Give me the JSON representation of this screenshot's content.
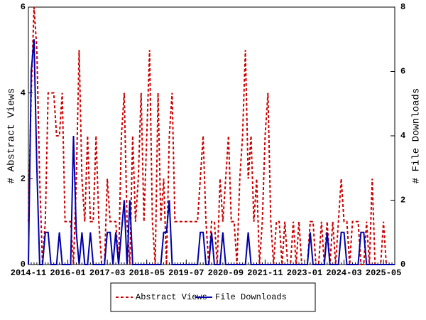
{
  "chart_data": {
    "type": "line",
    "ylabel": "# Abstract Views",
    "y2label": "# File Downloads",
    "x": [
      "2014-11",
      "2014-12",
      "2015-01",
      "2015-02",
      "2015-03",
      "2015-04",
      "2015-05",
      "2015-06",
      "2015-07",
      "2015-08",
      "2015-09",
      "2015-10",
      "2015-11",
      "2015-12",
      "2016-01",
      "2016-02",
      "2016-03",
      "2016-04",
      "2016-05",
      "2016-06",
      "2016-07",
      "2016-08",
      "2016-09",
      "2016-10",
      "2016-11",
      "2016-12",
      "2017-01",
      "2017-02",
      "2017-03",
      "2017-04",
      "2017-05",
      "2017-06",
      "2017-07",
      "2017-08",
      "2017-09",
      "2017-10",
      "2017-11",
      "2017-12",
      "2018-01",
      "2018-02",
      "2018-03",
      "2018-04",
      "2018-05",
      "2018-06",
      "2018-07",
      "2018-08",
      "2018-09",
      "2018-10",
      "2018-11",
      "2018-12",
      "2019-01",
      "2019-02",
      "2019-03",
      "2019-04",
      "2019-05",
      "2019-06",
      "2019-07",
      "2019-08",
      "2019-09",
      "2019-10",
      "2019-11",
      "2019-12",
      "2020-01",
      "2020-02",
      "2020-03",
      "2020-04",
      "2020-05",
      "2020-06",
      "2020-07",
      "2020-08",
      "2020-09",
      "2020-10",
      "2020-11",
      "2020-12",
      "2021-01",
      "2021-02",
      "2021-03",
      "2021-04",
      "2021-05",
      "2021-06",
      "2021-07",
      "2021-08",
      "2021-09",
      "2021-10",
      "2021-11",
      "2021-12",
      "2022-01",
      "2022-02",
      "2022-03",
      "2022-04",
      "2022-05",
      "2022-06",
      "2022-07",
      "2022-08",
      "2022-09",
      "2022-10",
      "2022-11",
      "2022-12",
      "2023-01",
      "2023-02",
      "2023-03",
      "2023-04",
      "2023-05",
      "2023-06",
      "2023-07",
      "2023-08",
      "2023-09",
      "2023-10",
      "2023-11",
      "2023-12",
      "2024-01",
      "2024-02",
      "2024-03",
      "2024-04",
      "2024-05",
      "2024-06",
      "2024-07",
      "2024-08",
      "2024-09",
      "2024-10",
      "2024-11",
      "2024-12",
      "2025-01",
      "2025-02",
      "2025-03",
      "2025-04",
      "2025-05",
      "2025-06",
      "2025-07",
      "2025-08",
      "2025-09"
    ],
    "series": [
      {
        "name": "Abstract Views",
        "color": "#cc0000",
        "dashed": true,
        "axis": "y",
        "values": [
          1,
          4,
          6,
          5,
          2,
          0,
          1,
          4,
          4,
          4,
          3,
          3,
          4,
          1,
          1,
          1,
          0,
          2,
          5,
          2,
          1,
          3,
          1,
          1,
          3,
          1,
          0,
          0,
          2,
          1,
          1,
          1,
          0,
          3,
          4,
          1,
          0,
          3,
          1,
          2,
          4,
          1,
          3,
          5,
          1,
          0,
          4,
          1,
          2,
          0,
          3,
          4,
          1,
          1,
          1,
          1,
          1,
          1,
          1,
          1,
          1,
          2,
          3,
          1,
          0,
          1,
          1,
          0,
          2,
          1,
          2,
          3,
          1,
          1,
          0,
          2,
          3,
          5,
          2,
          3,
          1,
          2,
          0,
          1,
          3,
          4,
          1,
          0,
          1,
          1,
          0,
          1,
          0,
          0,
          1,
          0,
          1,
          0,
          0,
          0,
          1,
          1,
          0,
          0,
          1,
          0,
          1,
          0,
          1,
          0,
          1,
          2,
          1,
          1,
          0,
          1,
          1,
          1,
          0,
          0,
          1,
          0,
          2,
          0,
          0,
          0,
          1,
          0,
          0,
          0,
          0
        ]
      },
      {
        "name": "File Downloads",
        "color": "#0000aa",
        "dashed": false,
        "axis": "y2",
        "values": [
          0,
          6,
          7,
          3,
          0,
          0,
          1,
          1,
          0,
          0,
          0,
          1,
          0,
          0,
          0,
          0,
          4,
          1,
          0,
          1,
          0,
          0,
          1,
          0,
          0,
          0,
          0,
          0,
          1,
          1,
          0,
          1,
          0,
          1,
          2,
          0,
          2,
          0,
          0,
          0,
          0,
          0,
          0,
          0,
          0,
          0,
          0,
          0,
          1,
          1,
          2,
          0,
          0,
          0,
          0,
          0,
          0,
          0,
          0,
          0,
          0,
          1,
          1,
          0,
          0,
          1,
          0,
          0,
          0,
          1,
          0,
          0,
          0,
          0,
          0,
          0,
          0,
          0,
          1,
          0,
          0,
          0,
          0,
          0,
          0,
          0,
          0,
          0,
          0,
          0,
          0,
          0,
          0,
          0,
          0,
          0,
          0,
          0,
          0,
          0,
          1,
          0,
          0,
          0,
          0,
          0,
          1,
          0,
          0,
          0,
          0,
          1,
          1,
          0,
          0,
          0,
          0,
          0,
          1,
          1,
          0,
          0,
          0,
          0,
          0,
          0,
          0,
          0,
          0,
          0,
          0
        ]
      }
    ],
    "xticks": [
      "2014-11",
      "2016-01",
      "2017-03",
      "2018-05",
      "2019-07",
      "2020-09",
      "2021-11",
      "2023-01",
      "2024-03",
      "2025-05"
    ],
    "ylim": [
      0,
      6
    ],
    "yticks": [
      0,
      2,
      4,
      6
    ],
    "y2lim": [
      0,
      8
    ],
    "y2ticks": [
      0,
      2,
      4,
      6,
      8
    ],
    "legend": "bottom"
  }
}
